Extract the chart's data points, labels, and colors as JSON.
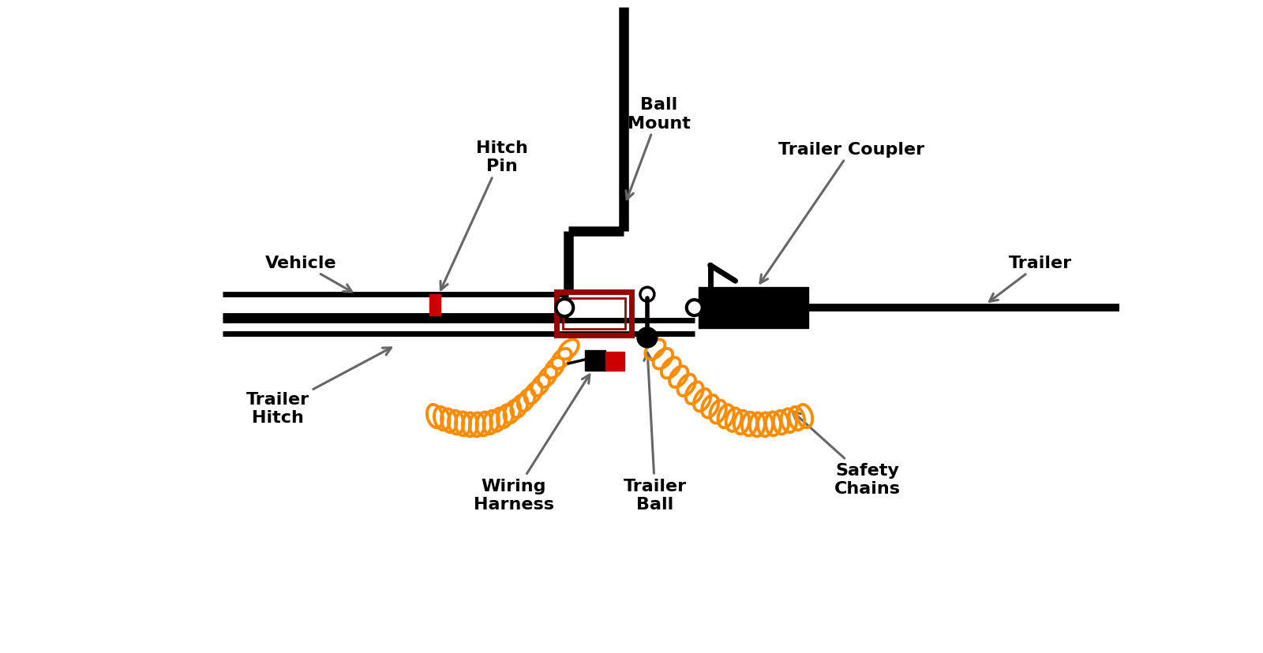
{
  "background_color": "#ffffff",
  "colors": {
    "black": "#000000",
    "red": "#cc0000",
    "dark_red": "#9B0000",
    "orange": "#FF8C00",
    "arrow_gray": "#666666"
  },
  "figsize": [
    16.0,
    8.29
  ],
  "dpi": 100,
  "xlim": [
    0,
    16
  ],
  "ylim": [
    0,
    8.29
  ]
}
